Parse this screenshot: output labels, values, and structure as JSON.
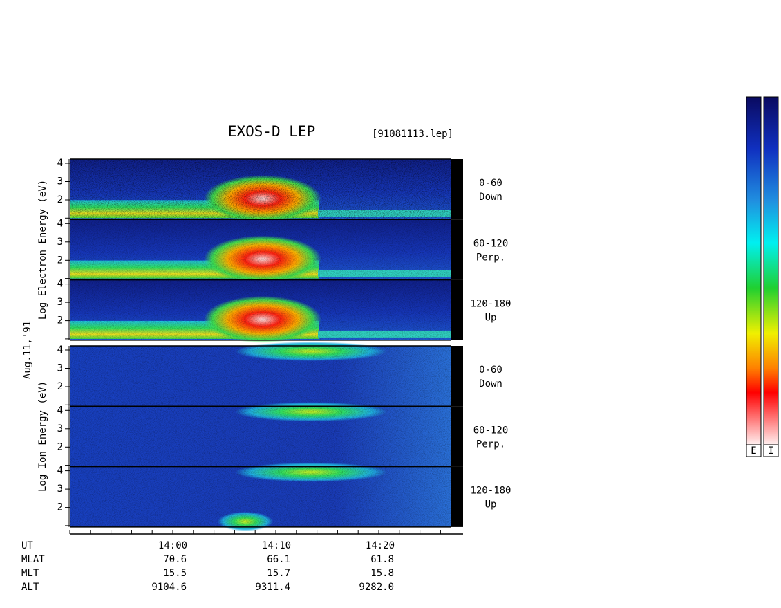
{
  "chart_data": {
    "type": "spectrogram",
    "title": "EXOS-D LEP",
    "file": "[91081113.lep]",
    "date": "Aug.11,'91",
    "groups": [
      {
        "ylabel": "Log  Electron  Energy (eV)",
        "panels": [
          {
            "label": "0-60",
            "sublabel": "Down",
            "yticks": [
              2,
              3,
              4
            ]
          },
          {
            "label": "60-120",
            "sublabel": "Perp.",
            "yticks": [
              2,
              3,
              4
            ]
          },
          {
            "label": "120-180",
            "sublabel": "Up",
            "yticks": [
              2,
              3,
              4
            ]
          }
        ]
      },
      {
        "ylabel": "Log  Ion  Energy (eV)",
        "panels": [
          {
            "label": "0-60",
            "sublabel": "Down",
            "yticks": [
              2,
              3,
              4
            ]
          },
          {
            "label": "60-120",
            "sublabel": "Perp.",
            "yticks": [
              2,
              3,
              4
            ]
          },
          {
            "label": "120-180",
            "sublabel": "Up",
            "yticks": [
              2,
              3,
              4
            ]
          }
        ]
      }
    ],
    "rows": [
      {
        "label": "UT",
        "values": [
          "14:00",
          "14:10",
          "14:20"
        ]
      },
      {
        "label": "MLAT",
        "values": [
          "70.6",
          "66.1",
          "61.8"
        ]
      },
      {
        "label": "MLT",
        "values": [
          "15.5",
          "15.7",
          "15.8"
        ]
      },
      {
        "label": "ALT",
        "values": [
          "9104.6",
          "9311.4",
          "9282.0"
        ]
      }
    ],
    "colorbars": [
      "E",
      "I"
    ]
  }
}
